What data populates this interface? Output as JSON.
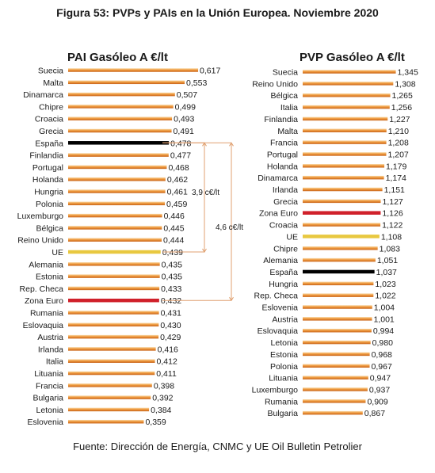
{
  "figure_title": "Figura 53: PVPs y PAIs en la Unión Europea. Noviembre 2020",
  "source": "Fuente: Dirección de Energía, CNMC y UE Oil Bulletin Petrolier",
  "colors": {
    "default_bar": "#e07b1e",
    "default_bar_light": "#f6c88a",
    "spain": "#000000",
    "eurozone": "#d0202a",
    "eu": "#e8c840",
    "bracket": "#e0a070"
  },
  "chart_data": [
    {
      "type": "bar",
      "orientation": "horizontal",
      "title": "PAI Gasóleo A €/lt",
      "categories": [
        "Suecia",
        "Malta",
        "Dinamarca",
        "Chipre",
        "Croacia",
        "Grecia",
        "España",
        "Finlandia",
        "Portugal",
        "Holanda",
        "Hungria",
        "Polonia",
        "Luxemburgo",
        "Bélgica",
        "Reino Unido",
        "UE",
        "Alemania",
        "Estonia",
        "Rep. Checa",
        "Zona Euro",
        "Rumania",
        "Eslovaquia",
        "Austria",
        "Irlanda",
        "Italia",
        "Lituania",
        "Francia",
        "Bulgaria",
        "Letonia",
        "Eslovenia"
      ],
      "values": [
        0.617,
        0.553,
        0.507,
        0.499,
        0.493,
        0.491,
        0.478,
        0.477,
        0.468,
        0.462,
        0.461,
        0.459,
        0.446,
        0.445,
        0.444,
        0.439,
        0.435,
        0.435,
        0.433,
        0.432,
        0.431,
        0.43,
        0.429,
        0.416,
        0.412,
        0.411,
        0.398,
        0.392,
        0.384,
        0.359
      ],
      "value_labels": [
        "0,617",
        "0,553",
        "0,507",
        "0,499",
        "0,493",
        "0,491",
        "0,478",
        "0,477",
        "0,468",
        "0,462",
        "0,461",
        "0,459",
        "0,446",
        "0,445",
        "0,444",
        "0,439",
        "0,435",
        "0,435",
        "0,433",
        "0,432",
        "0,431",
        "0,430",
        "0,429",
        "0,416",
        "0,412",
        "0,411",
        "0,398",
        "0,392",
        "0,384",
        "0,359"
      ],
      "highlights": {
        "España": "spain",
        "Zona Euro": "eurozone",
        "UE": "eu"
      },
      "annotations": [
        {
          "text": "3,9 c€/lt",
          "from": "España",
          "to": "UE"
        },
        {
          "text": "4,6 c€/lt",
          "from": "España",
          "to": "Zona Euro"
        }
      ]
    },
    {
      "type": "bar",
      "orientation": "horizontal",
      "title": "PVP Gasóleo A €/lt",
      "categories": [
        "Suecia",
        "Reino Unido",
        "Bélgica",
        "Italia",
        "Finlandia",
        "Malta",
        "Francia",
        "Portugal",
        "Holanda",
        "Dinamarca",
        "Irlanda",
        "Grecia",
        "Zona Euro",
        "Croacia",
        "UE",
        "Chipre",
        "Alemania",
        "España",
        "Hungria",
        "Rep. Checa",
        "Eslovenia",
        "Austria",
        "Eslovaquia",
        "Letonia",
        "Estonia",
        "Polonia",
        "Lituania",
        "Luxemburgo",
        "Rumania",
        "Bulgaria"
      ],
      "values": [
        1.345,
        1.308,
        1.265,
        1.256,
        1.227,
        1.21,
        1.208,
        1.207,
        1.179,
        1.174,
        1.151,
        1.127,
        1.126,
        1.122,
        1.108,
        1.083,
        1.051,
        1.037,
        1.023,
        1.022,
        1.004,
        1.001,
        0.994,
        0.98,
        0.968,
        0.967,
        0.947,
        0.937,
        0.909,
        0.867
      ],
      "value_labels": [
        "1,345",
        "1,308",
        "1,265",
        "1,256",
        "1,227",
        "1,210",
        "1,208",
        "1,207",
        "1,179",
        "1,174",
        "1,151",
        "1,127",
        "1,126",
        "1,122",
        "1,108",
        "1,083",
        "1,051",
        "1,037",
        "1,023",
        "1,022",
        "1,004",
        "1,001",
        "0,994",
        "0,980",
        "0,968",
        "0,967",
        "0,947",
        "0,937",
        "0,909",
        "0,867"
      ],
      "highlights": {
        "España": "spain",
        "Zona Euro": "eurozone",
        "UE": "eu"
      }
    }
  ]
}
